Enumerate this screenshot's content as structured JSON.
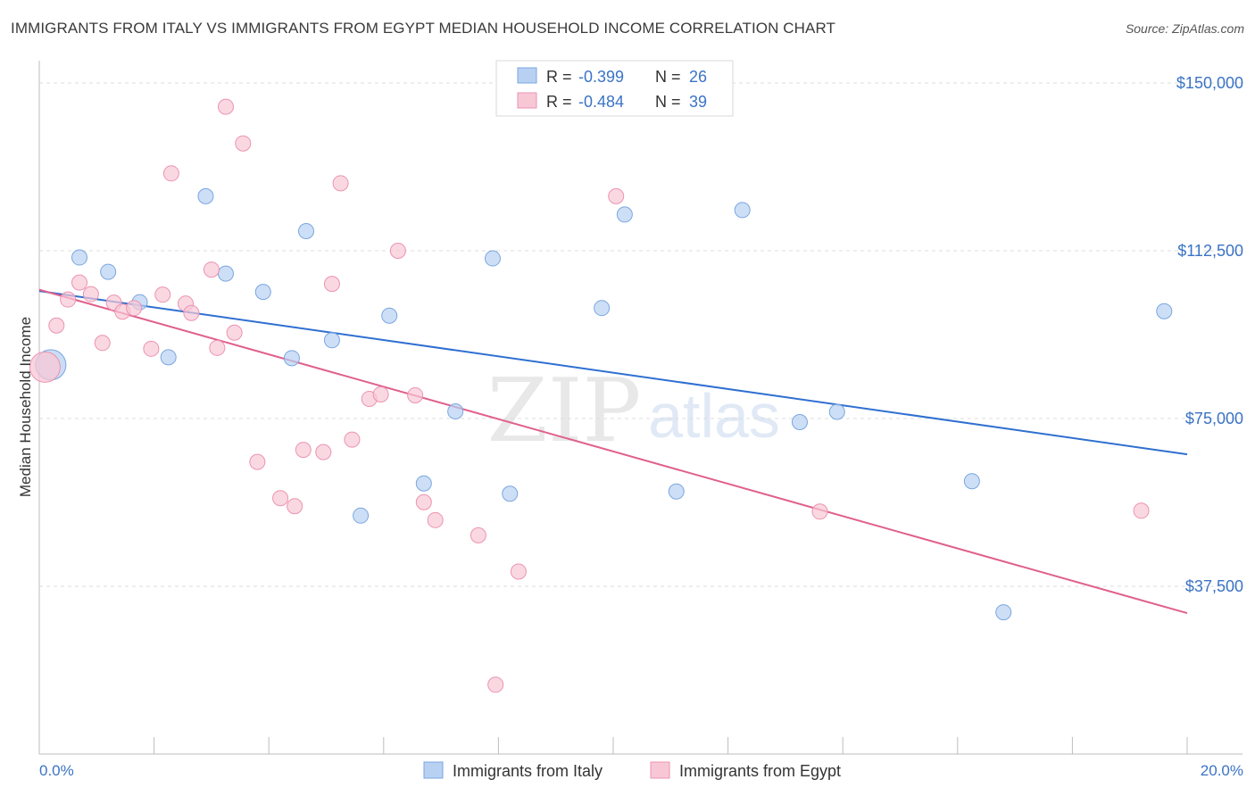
{
  "header": {
    "title": "IMMIGRANTS FROM ITALY VS IMMIGRANTS FROM EGYPT MEDIAN HOUSEHOLD INCOME CORRELATION CHART",
    "source": "Source: ZipAtlas.com"
  },
  "watermark": {
    "zip": "ZIP",
    "atlas": "atlas"
  },
  "colors": {
    "italy_fill": "#b8d1f2",
    "italy_stroke": "#7aa6e0",
    "italy_line": "#2f6fd0",
    "egypt_fill": "#f8c7d6",
    "egypt_stroke": "#ec93b1",
    "egypt_line": "#e0608d",
    "axis_text": "#3b73c5"
  },
  "chart_data": {
    "type": "scatter",
    "title": "IMMIGRANTS FROM ITALY VS IMMIGRANTS FROM EGYPT MEDIAN HOUSEHOLD INCOME CORRELATION CHART",
    "xlabel": "",
    "ylabel": "Median Household Income",
    "xlim": [
      0,
      20
    ],
    "ylim": [
      0,
      153000
    ],
    "x_tick_labels": [
      "0.0%",
      "20.0%"
    ],
    "y_ticks": [
      37500,
      75000,
      112500,
      150000
    ],
    "y_tick_labels": [
      "$37,500",
      "$75,000",
      "$112,500",
      "$150,000"
    ],
    "grid": true,
    "legend_position": "bottom-center",
    "stats": [
      {
        "r_label": "R =",
        "r_value": "-0.399",
        "n_label": "N =",
        "n_value": "26"
      },
      {
        "r_label": "R =",
        "r_value": "-0.484",
        "n_label": "N =",
        "n_value": "39"
      }
    ],
    "series": [
      {
        "name": "Immigrants from Italy",
        "points": [
          {
            "x": 0.2,
            "y": 87000,
            "big": true
          },
          {
            "x": 0.7,
            "y": 111000
          },
          {
            "x": 1.2,
            "y": 107800
          },
          {
            "x": 1.75,
            "y": 101000
          },
          {
            "x": 2.25,
            "y": 88700
          },
          {
            "x": 2.9,
            "y": 124700
          },
          {
            "x": 3.25,
            "y": 107400
          },
          {
            "x": 3.9,
            "y": 103300
          },
          {
            "x": 4.4,
            "y": 88500
          },
          {
            "x": 4.65,
            "y": 116900
          },
          {
            "x": 5.1,
            "y": 92500
          },
          {
            "x": 5.6,
            "y": 53300
          },
          {
            "x": 6.1,
            "y": 98000
          },
          {
            "x": 6.7,
            "y": 60500
          },
          {
            "x": 7.25,
            "y": 76600
          },
          {
            "x": 7.9,
            "y": 110800
          },
          {
            "x": 8.2,
            "y": 58200
          },
          {
            "x": 9.8,
            "y": 99700
          },
          {
            "x": 10.2,
            "y": 120600
          },
          {
            "x": 11.1,
            "y": 58700
          },
          {
            "x": 12.25,
            "y": 121600
          },
          {
            "x": 13.25,
            "y": 74200
          },
          {
            "x": 13.9,
            "y": 76500
          },
          {
            "x": 16.25,
            "y": 61000
          },
          {
            "x": 16.8,
            "y": 31700
          },
          {
            "x": 19.6,
            "y": 99000
          }
        ],
        "trend": {
          "x1": 0,
          "y1": 103500,
          "x2": 20,
          "y2": 67000
        }
      },
      {
        "name": "Immigrants from Egypt",
        "points": [
          {
            "x": 0.1,
            "y": 86500,
            "big": true
          },
          {
            "x": 0.3,
            "y": 95800
          },
          {
            "x": 0.5,
            "y": 101600
          },
          {
            "x": 0.7,
            "y": 105400
          },
          {
            "x": 0.9,
            "y": 102800
          },
          {
            "x": 1.1,
            "y": 91900
          },
          {
            "x": 1.3,
            "y": 100900
          },
          {
            "x": 1.45,
            "y": 98900
          },
          {
            "x": 1.65,
            "y": 99700
          },
          {
            "x": 1.95,
            "y": 90600
          },
          {
            "x": 2.15,
            "y": 102700
          },
          {
            "x": 2.3,
            "y": 129800
          },
          {
            "x": 2.55,
            "y": 100700
          },
          {
            "x": 2.65,
            "y": 98600
          },
          {
            "x": 3.0,
            "y": 108300
          },
          {
            "x": 3.1,
            "y": 90800
          },
          {
            "x": 3.25,
            "y": 144700
          },
          {
            "x": 3.4,
            "y": 94200
          },
          {
            "x": 3.55,
            "y": 136500
          },
          {
            "x": 3.8,
            "y": 65300
          },
          {
            "x": 4.2,
            "y": 57200
          },
          {
            "x": 4.45,
            "y": 55400
          },
          {
            "x": 4.6,
            "y": 68000
          },
          {
            "x": 4.95,
            "y": 67500
          },
          {
            "x": 5.1,
            "y": 105100
          },
          {
            "x": 5.25,
            "y": 127600
          },
          {
            "x": 5.45,
            "y": 70300
          },
          {
            "x": 5.75,
            "y": 79400
          },
          {
            "x": 5.95,
            "y": 80400
          },
          {
            "x": 6.25,
            "y": 112500
          },
          {
            "x": 6.55,
            "y": 80200
          },
          {
            "x": 6.7,
            "y": 56300
          },
          {
            "x": 6.9,
            "y": 52300
          },
          {
            "x": 7.65,
            "y": 48900
          },
          {
            "x": 7.95,
            "y": 15500
          },
          {
            "x": 8.35,
            "y": 40800
          },
          {
            "x": 10.05,
            "y": 124700
          },
          {
            "x": 13.6,
            "y": 54200
          },
          {
            "x": 19.2,
            "y": 54400
          }
        ],
        "trend": {
          "x1": 0,
          "y1": 103800,
          "x2": 20,
          "y2": 31500
        }
      }
    ]
  }
}
